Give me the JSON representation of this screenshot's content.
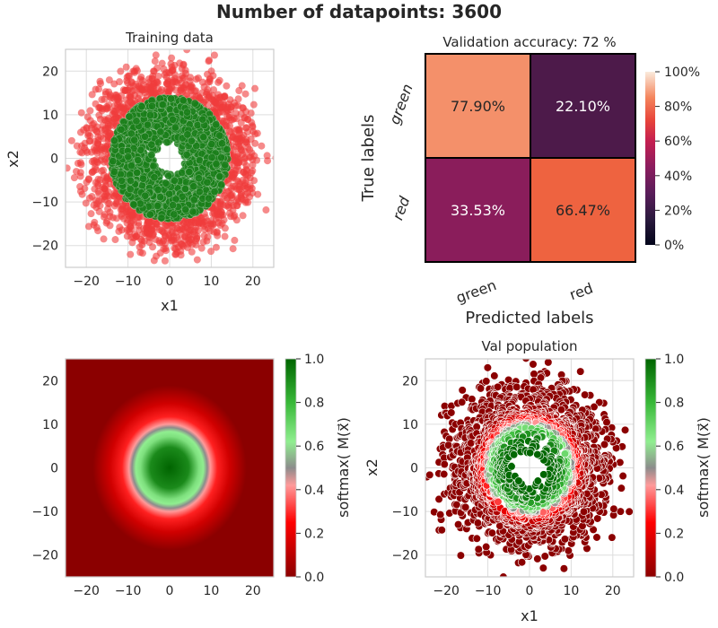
{
  "suptitle": "Number of datapoints: 3600",
  "chart_data": [
    {
      "type": "scatter",
      "title": "Training data",
      "xlabel": "x1",
      "ylabel": "x2",
      "xlim": [
        -25,
        25
      ],
      "ylim": [
        -25,
        25
      ],
      "xticks": [
        "−20",
        "−10",
        "0",
        "10",
        "20"
      ],
      "yticks": [
        "−20",
        "−10",
        "0",
        "10",
        "20"
      ],
      "grid": true,
      "n_points": 3600,
      "colors": {
        "green": "#1a7f1a",
        "red": "#f03c3c"
      },
      "series": [
        {
          "class": "green",
          "shape": "ring",
          "inner_radius": 3,
          "outer_radius": 14,
          "color": "#1a7f1a"
        },
        {
          "class": "red",
          "shape": "ring",
          "inner_radius": 9,
          "outer_radius": 23,
          "color": "#f03c3c"
        }
      ]
    },
    {
      "type": "heatmap",
      "title": "Validation accuracy: 72 %",
      "xlabel": "Predicted labels",
      "ylabel": "True labels",
      "x_categories": [
        "green",
        "red"
      ],
      "y_categories": [
        "green",
        "red"
      ],
      "values": [
        [
          77.9,
          22.1
        ],
        [
          33.53,
          66.47
        ]
      ],
      "cell_labels": [
        [
          "77.90%",
          "22.10%"
        ],
        [
          "33.53%",
          "66.47%"
        ]
      ],
      "colorbar": {
        "ticks": [
          "0%",
          "20%",
          "40%",
          "60%",
          "80%",
          "100%"
        ],
        "range": [
          0,
          100
        ],
        "colormap": "rocket"
      }
    },
    {
      "type": "heatmap",
      "title": "",
      "xlim": [
        -25,
        25
      ],
      "ylim": [
        -25,
        25
      ],
      "xticks": [
        "−20",
        "−10",
        "0",
        "10",
        "20"
      ],
      "yticks": [
        "−20",
        "−10",
        "0",
        "10",
        "20"
      ],
      "description_values": {
        "high_region_center": [
          0,
          0
        ],
        "high_region_radius": 9
      },
      "colorbar": {
        "label": "softmax( M(x⃗)",
        "ticks": [
          "0.0",
          "0.2",
          "0.4",
          "0.6",
          "0.8",
          "1.0"
        ],
        "range": [
          0,
          1
        ],
        "colormap": "red-grey-green"
      }
    },
    {
      "type": "scatter",
      "title": "Val population",
      "xlabel": "x1",
      "ylabel": "x2",
      "xlim": [
        -25,
        25
      ],
      "ylim": [
        -25,
        25
      ],
      "xticks": [
        "−20",
        "−10",
        "0",
        "10",
        "20"
      ],
      "yticks": [
        "−20",
        "−10",
        "0",
        "10",
        "20"
      ],
      "grid": true,
      "colorbar": {
        "label": "softmax( M(x⃗)",
        "ticks": [
          "0.0",
          "0.2",
          "0.4",
          "0.6",
          "0.8",
          "1.0"
        ],
        "range": [
          0,
          1
        ],
        "colormap": "red-grey-green"
      }
    }
  ]
}
